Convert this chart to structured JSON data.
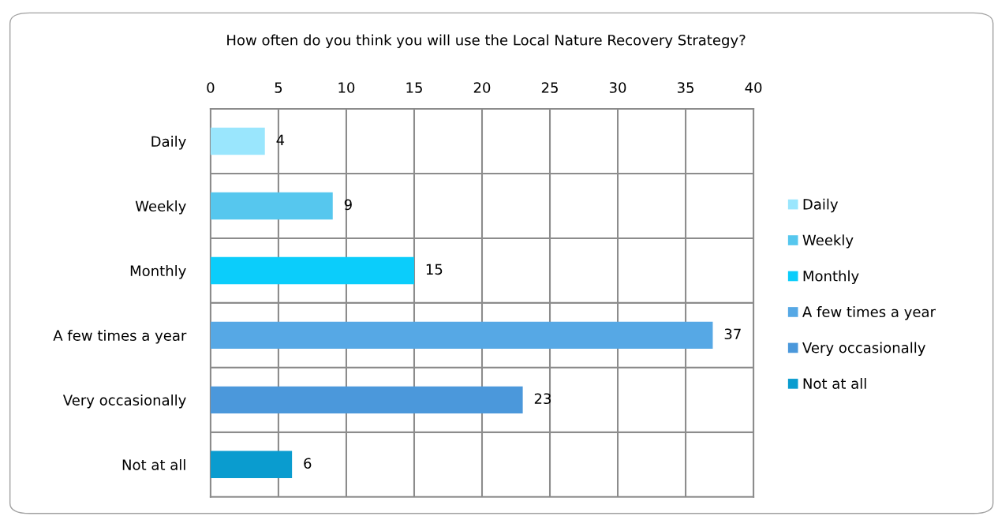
{
  "chart_data": {
    "type": "bar",
    "orientation": "horizontal",
    "title": "How often do you think you will use the Local Nature Recovery Strategy?",
    "categories": [
      "Daily",
      "Weekly",
      "Monthly",
      "A few times a year",
      "Very occasionally",
      "Not at all"
    ],
    "series": [
      {
        "name": "Daily",
        "color": "#9ae6fd",
        "values": [
          4,
          null,
          null,
          null,
          null,
          null
        ]
      },
      {
        "name": "Weekly",
        "color": "#56c7ee",
        "values": [
          null,
          9,
          null,
          null,
          null,
          null
        ]
      },
      {
        "name": "Monthly",
        "color": "#0bcdfb",
        "values": [
          null,
          null,
          15,
          null,
          null,
          null
        ]
      },
      {
        "name": "A few times a year",
        "color": "#56a8e5",
        "values": [
          null,
          null,
          null,
          37,
          null,
          null
        ]
      },
      {
        "name": "Very occasionally",
        "color": "#4b98db",
        "values": [
          null,
          null,
          null,
          null,
          23,
          null
        ]
      },
      {
        "name": "Not at all",
        "color": "#0a9ccf",
        "values": [
          null,
          null,
          null,
          null,
          null,
          6
        ]
      }
    ],
    "xlim": [
      0,
      40
    ],
    "xticks": [
      0,
      5,
      10,
      15,
      20,
      25,
      30,
      35,
      40
    ],
    "grid": true,
    "legend": "right",
    "data_labels": true
  }
}
